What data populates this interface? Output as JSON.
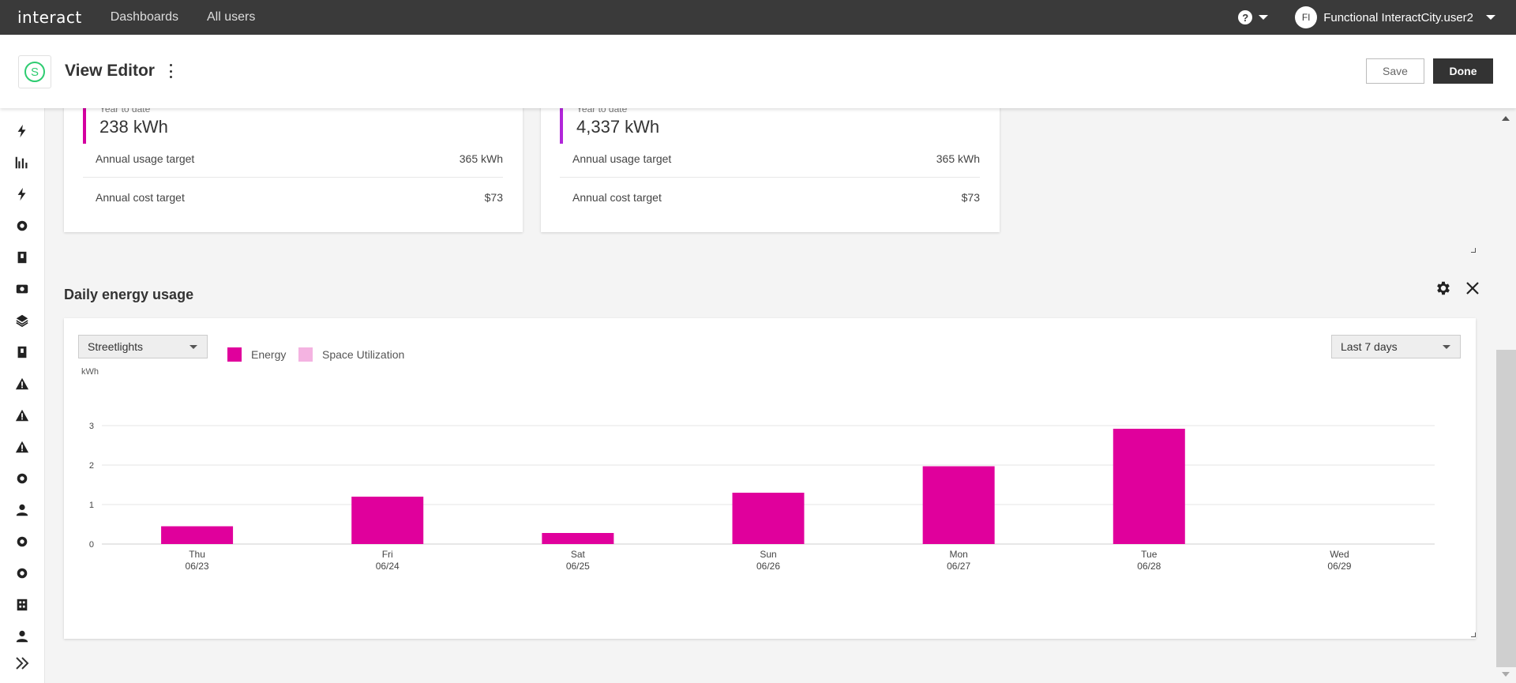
{
  "topbar": {
    "logo": "interact",
    "nav": [
      "Dashboards",
      "All users"
    ],
    "help_label": "?",
    "user_initials": "FI",
    "user_name": "Functional InteractCity.user2"
  },
  "editor": {
    "badge_letter": "S",
    "title": "View Editor",
    "save_label": "Save",
    "done_label": "Done"
  },
  "sidebar_icons": [
    "bolt-icon",
    "bar-chart-icon",
    "bolt-icon",
    "target-icon",
    "door-icon",
    "parking-icon",
    "layers-icon",
    "door-icon",
    "warning-icon",
    "warning-icon",
    "warning-icon",
    "target-icon",
    "person-icon",
    "target-icon",
    "target-icon",
    "building-icon",
    "person-icon"
  ],
  "kpi_cards": [
    {
      "caption": "Year to date",
      "value": "238 kWh",
      "rows": [
        {
          "label": "Annual usage target",
          "value": "365 kWh"
        },
        {
          "label": "Annual cost target",
          "value": "$73"
        }
      ]
    },
    {
      "caption": "Year to date",
      "value": "4,337 kWh",
      "rows": [
        {
          "label": "Annual usage target",
          "value": "365 kWh"
        },
        {
          "label": "Annual cost target",
          "value": "$73"
        }
      ]
    }
  ],
  "widget": {
    "title": "Daily energy usage",
    "asset_select": "Streetlights",
    "period_select": "Last 7 days",
    "legend": [
      {
        "name": "Energy",
        "color": "#e0009c"
      },
      {
        "name": "Space Utilization",
        "color": "#f4b3e1"
      }
    ]
  },
  "chart_data": {
    "type": "bar",
    "ylabel": "kWh",
    "ylim": [
      0,
      3
    ],
    "yticks": [
      0,
      1,
      2,
      3
    ],
    "categories": [
      "Thu",
      "Fri",
      "Sat",
      "Sun",
      "Mon",
      "Tue",
      "Wed"
    ],
    "dates": [
      "06/23",
      "06/24",
      "06/25",
      "06/26",
      "06/27",
      "06/28",
      "06/29"
    ],
    "series": [
      {
        "name": "Energy",
        "values": [
          0.45,
          1.2,
          0.28,
          1.3,
          1.97,
          2.92,
          0
        ]
      }
    ],
    "bar_color": "#e0009c",
    "grid": true
  }
}
